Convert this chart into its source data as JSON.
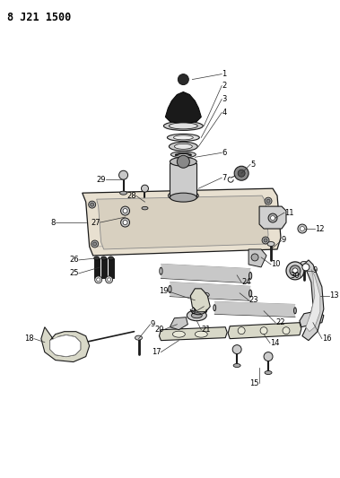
{
  "title": "8 J21 1500",
  "background_color": "#ffffff",
  "line_color": "#1a1a1a",
  "text_color": "#000000",
  "figsize": [
    3.79,
    5.33
  ],
  "dpi": 100,
  "label_fontsize": 6.0,
  "leader_lw": 0.5
}
